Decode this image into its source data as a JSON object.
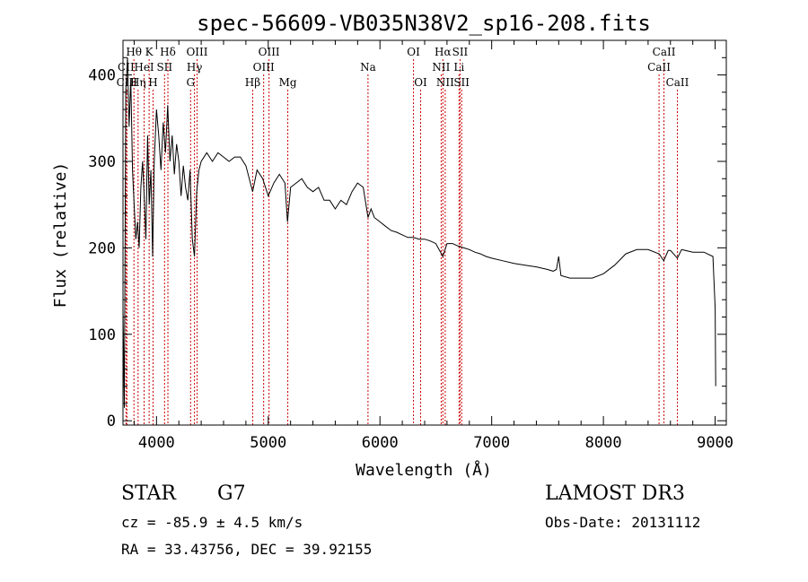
{
  "chart_data": {
    "type": "line",
    "title": "spec-56609-VB035N38V2_sp16-208.fits",
    "xlabel": "Wavelength (Å)",
    "ylabel": "Flux (relative)",
    "xlim": [
      3700,
      9100
    ],
    "ylim": [
      -5,
      440
    ],
    "x_ticks": [
      4000,
      5000,
      6000,
      7000,
      8000,
      9000
    ],
    "y_ticks": [
      0,
      100,
      200,
      300,
      400
    ],
    "series": [
      {
        "name": "flux",
        "points": [
          [
            3700,
            130
          ],
          [
            3712,
            15
          ],
          [
            3725,
            380
          ],
          [
            3740,
            420
          ],
          [
            3755,
            340
          ],
          [
            3770,
            395
          ],
          [
            3785,
            290
          ],
          [
            3800,
            250
          ],
          [
            3815,
            210
          ],
          [
            3830,
            230
          ],
          [
            3845,
            200
          ],
          [
            3860,
            270
          ],
          [
            3875,
            300
          ],
          [
            3890,
            260
          ],
          [
            3905,
            210
          ],
          [
            3920,
            330
          ],
          [
            3935,
            250
          ],
          [
            3950,
            290
          ],
          [
            3965,
            190
          ],
          [
            3980,
            300
          ],
          [
            4000,
            360
          ],
          [
            4020,
            330
          ],
          [
            4040,
            290
          ],
          [
            4060,
            345
          ],
          [
            4080,
            310
          ],
          [
            4100,
            365
          ],
          [
            4120,
            300
          ],
          [
            4140,
            330
          ],
          [
            4160,
            285
          ],
          [
            4180,
            320
          ],
          [
            4200,
            300
          ],
          [
            4220,
            260
          ],
          [
            4240,
            295
          ],
          [
            4260,
            270
          ],
          [
            4280,
            255
          ],
          [
            4300,
            290
          ],
          [
            4320,
            210
          ],
          [
            4340,
            190
          ],
          [
            4360,
            265
          ],
          [
            4380,
            290
          ],
          [
            4400,
            300
          ],
          [
            4450,
            310
          ],
          [
            4500,
            300
          ],
          [
            4550,
            310
          ],
          [
            4600,
            305
          ],
          [
            4650,
            300
          ],
          [
            4700,
            305
          ],
          [
            4750,
            305
          ],
          [
            4800,
            295
          ],
          [
            4860,
            265
          ],
          [
            4900,
            290
          ],
          [
            4950,
            280
          ],
          [
            5000,
            260
          ],
          [
            5050,
            275
          ],
          [
            5100,
            285
          ],
          [
            5150,
            275
          ],
          [
            5172,
            230
          ],
          [
            5200,
            270
          ],
          [
            5250,
            275
          ],
          [
            5300,
            280
          ],
          [
            5350,
            270
          ],
          [
            5400,
            265
          ],
          [
            5450,
            270
          ],
          [
            5500,
            255
          ],
          [
            5550,
            255
          ],
          [
            5600,
            245
          ],
          [
            5650,
            255
          ],
          [
            5700,
            250
          ],
          [
            5750,
            265
          ],
          [
            5800,
            275
          ],
          [
            5850,
            270
          ],
          [
            5893,
            235
          ],
          [
            5920,
            245
          ],
          [
            5950,
            235
          ],
          [
            6000,
            230
          ],
          [
            6050,
            225
          ],
          [
            6100,
            220
          ],
          [
            6150,
            218
          ],
          [
            6200,
            215
          ],
          [
            6250,
            212
          ],
          [
            6300,
            212
          ],
          [
            6350,
            210
          ],
          [
            6400,
            210
          ],
          [
            6450,
            208
          ],
          [
            6500,
            205
          ],
          [
            6563,
            190
          ],
          [
            6600,
            205
          ],
          [
            6650,
            205
          ],
          [
            6700,
            202
          ],
          [
            6750,
            200
          ],
          [
            6800,
            198
          ],
          [
            6850,
            195
          ],
          [
            6900,
            193
          ],
          [
            6950,
            190
          ],
          [
            7000,
            188
          ],
          [
            7100,
            185
          ],
          [
            7200,
            182
          ],
          [
            7300,
            180
          ],
          [
            7400,
            178
          ],
          [
            7500,
            175
          ],
          [
            7550,
            173
          ],
          [
            7580,
            175
          ],
          [
            7600,
            190
          ],
          [
            7620,
            168
          ],
          [
            7700,
            165
          ],
          [
            7800,
            165
          ],
          [
            7900,
            165
          ],
          [
            8000,
            170
          ],
          [
            8100,
            180
          ],
          [
            8200,
            193
          ],
          [
            8300,
            198
          ],
          [
            8400,
            198
          ],
          [
            8500,
            193
          ],
          [
            8540,
            185
          ],
          [
            8580,
            197
          ],
          [
            8600,
            197
          ],
          [
            8662,
            188
          ],
          [
            8700,
            198
          ],
          [
            8800,
            195
          ],
          [
            8900,
            195
          ],
          [
            8980,
            190
          ],
          [
            9000,
            130
          ],
          [
            9005,
            40
          ]
        ]
      }
    ],
    "lines": [
      {
        "label": "Hθ",
        "wave": 3798,
        "row": 1
      },
      {
        "label": "CII",
        "wave": 3727,
        "row": 2
      },
      {
        "label": "CIII",
        "wave": 3735,
        "row": 3
      },
      {
        "label": "K",
        "wave": 3934,
        "row": 1
      },
      {
        "label": "HeI",
        "wave": 3889,
        "row": 2
      },
      {
        "label": "Hη",
        "wave": 3835,
        "row": 3
      },
      {
        "label": "SII",
        "wave": 4072,
        "row": 2
      },
      {
        "label": "H",
        "wave": 3969,
        "row": 3
      },
      {
        "label": "Hδ",
        "wave": 4102,
        "row": 1
      },
      {
        "label": "OIII",
        "wave": 4363,
        "row": 1
      },
      {
        "label": "Hγ",
        "wave": 4340,
        "row": 2
      },
      {
        "label": "G",
        "wave": 4305,
        "row": 3
      },
      {
        "label": "OIII",
        "wave": 5007,
        "row": 1
      },
      {
        "label": "OIII",
        "wave": 4959,
        "row": 2
      },
      {
        "label": "Hβ",
        "wave": 4861,
        "row": 3
      },
      {
        "label": "Mg",
        "wave": 5175,
        "row": 3
      },
      {
        "label": "Na",
        "wave": 5893,
        "row": 2
      },
      {
        "label": "OI",
        "wave": 6300,
        "row": 1
      },
      {
        "label": "OI",
        "wave": 6364,
        "row": 3
      },
      {
        "label": "Hα",
        "wave": 6563,
        "row": 1
      },
      {
        "label": "NII",
        "wave": 6548,
        "row": 2
      },
      {
        "label": "NII",
        "wave": 6584,
        "row": 3
      },
      {
        "label": "SII",
        "wave": 6717,
        "row": 1
      },
      {
        "label": "Li",
        "wave": 6708,
        "row": 2
      },
      {
        "label": "SII",
        "wave": 6731,
        "row": 3
      },
      {
        "label": "CaII",
        "wave": 8542,
        "row": 1
      },
      {
        "label": "CaII",
        "wave": 8498,
        "row": 2
      },
      {
        "label": "CaII",
        "wave": 8662,
        "row": 3
      }
    ]
  },
  "info": {
    "class_label": "STAR",
    "subclass_label": "G7",
    "cz_label": "cz = -85.9 ± 4.5 km/s",
    "coords_label": "RA =  33.43756, DEC =  39.92155",
    "survey_label": "LAMOST DR3",
    "obs_date_label": "Obs-Date: 20131112"
  },
  "colors": {
    "spectrum": "#000000",
    "line_marker": "#cc0000",
    "axis": "#000000"
  }
}
